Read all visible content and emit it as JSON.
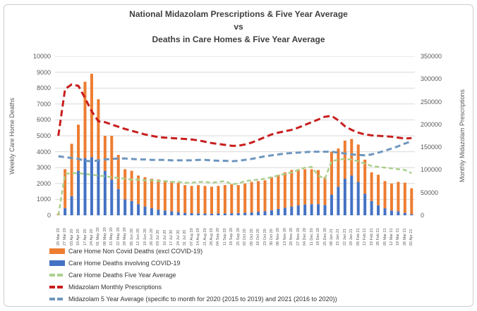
{
  "title": {
    "line1": "National Midazolam Prescriptions & Five Year Average",
    "line2": "vs",
    "line3": "Deaths in Care Homes & Five Year Average"
  },
  "chart_data": {
    "type": "bar",
    "subtype": "stacked-bar-with-dashed-lines",
    "grid": "horizontal-on",
    "legend_position": "bottom-left",
    "categories": [
      "20 Mar 20",
      "27 Mar 20",
      "03 Apr 20",
      "10 Apr 20",
      "17 Apr 20",
      "24 Apr 20",
      "01 May 20",
      "08 May 20",
      "15 May 20",
      "22 May 20",
      "29 May 20",
      "05 Jun 20",
      "12 Jun 20",
      "19 Jun 20",
      "26 Jun 20",
      "03 Jul 20",
      "10 Jul 20",
      "17 Jul 20",
      "24 Jul 20",
      "31 Jul 20",
      "07 Aug 20",
      "14 Aug 20",
      "21 Aug 20",
      "28 Aug 20",
      "04 Sep 20",
      "11 Sep 20",
      "18 Sep 20",
      "25 Sep 20",
      "02 Oct 20",
      "09 Oct 20",
      "16 Oct 20",
      "23 Oct 20",
      "30 Oct 20",
      "06 Nov 20",
      "13 Nov 20",
      "20 Nov 20",
      "27 Nov 20",
      "04 Dec 20",
      "11 Dec 20",
      "18 Dec 20",
      "25 Dec 20",
      "08 Jan 21",
      "15 Jan 21",
      "22 Jan 21",
      "29 Jan 21",
      "05 Feb 21",
      "12 Feb 21",
      "19 Feb 21",
      "26 Feb 21",
      "05 Mar 21",
      "12 Mar 21",
      "19 Mar 21",
      "26 Mar 21",
      "02 Apr 21"
    ],
    "left_axis": {
      "label": "Weekly Care Home Deaths",
      "min": 0,
      "max": 10000,
      "step": 1000
    },
    "right_axis": {
      "label": "Monthly Midazolam Prescriptions",
      "min": 0,
      "max": 350000,
      "step": 50000
    },
    "series": [
      {
        "name": "Care Home Non Covid Deaths (excl COVID-19)",
        "type": "bar",
        "stack_level": 1,
        "axis": "left",
        "color": "#ED7D31",
        "values": [
          100,
          2450,
          3300,
          2900,
          4800,
          5250,
          3800,
          2200,
          2750,
          2150,
          1900,
          1900,
          1800,
          1850,
          1850,
          1900,
          1900,
          1900,
          1850,
          1750,
          1720,
          1780,
          1740,
          1700,
          1740,
          1780,
          1820,
          1760,
          1840,
          1920,
          1930,
          1940,
          2080,
          2150,
          2220,
          2300,
          2280,
          2220,
          2200,
          2150,
          1750,
          2700,
          2400,
          2400,
          2300,
          2350,
          2150,
          1800,
          1920,
          1710,
          1700,
          1850,
          1900,
          1630
        ]
      },
      {
        "name": "Care Home Deaths involving COVID-19",
        "type": "bar",
        "stack_level": 0,
        "axis": "left",
        "color": "#4472C4",
        "values": [
          0,
          450,
          1200,
          2800,
          3600,
          3650,
          3500,
          2800,
          2250,
          1650,
          1000,
          900,
          700,
          550,
          450,
          350,
          300,
          250,
          200,
          150,
          130,
          120,
          110,
          100,
          110,
          120,
          130,
          140,
          160,
          180,
          220,
          260,
          320,
          400,
          480,
          550,
          620,
          680,
          700,
          700,
          650,
          1300,
          1800,
          2300,
          2500,
          2100,
          1350,
          900,
          630,
          440,
          300,
          250,
          150,
          70
        ]
      },
      {
        "name": "Care Home Deaths Five Year Average",
        "type": "line",
        "dashed": true,
        "axis": "left",
        "color": "#A9D08E",
        "stroke_width": 2.5,
        "dash": "6 4",
        "values": [
          0,
          2600,
          2650,
          2650,
          2600,
          2550,
          2500,
          2450,
          2400,
          2350,
          2300,
          2250,
          2250,
          2200,
          2200,
          2150,
          2150,
          2100,
          2100,
          2050,
          2050,
          2100,
          2100,
          2050,
          2100,
          2150,
          1950,
          2000,
          2150,
          2200,
          2250,
          2300,
          2400,
          2500,
          2600,
          2700,
          2850,
          3000,
          3050,
          2500,
          2300,
          3400,
          3500,
          3550,
          3500,
          3400,
          3250,
          3100,
          3050,
          3000,
          2950,
          2900,
          2850,
          2650
        ]
      },
      {
        "name": "Midazolam Monthly Prescriptions",
        "type": "line",
        "dashed": true,
        "axis": "right",
        "color": "#C81E1E",
        "stroke_width": 3,
        "dash": "9 5",
        "values": [
          175000,
          278000,
          288000,
          285000,
          258000,
          229000,
          207000,
          205000,
          200000,
          195000,
          190000,
          186000,
          182000,
          178000,
          175000,
          172000,
          171000,
          170000,
          169000,
          168000,
          167000,
          165000,
          162000,
          159000,
          157000,
          155000,
          153000,
          153000,
          156000,
          160000,
          166000,
          172000,
          178000,
          182000,
          185000,
          188000,
          193000,
          199000,
          205000,
          211000,
          217000,
          219000,
          209000,
          196000,
          188000,
          182000,
          178000,
          176000,
          175000,
          174000,
          173000,
          171000,
          169000,
          170000
        ]
      },
      {
        "name": "Midazolam 5 Year Average (specific to month for 2020 (2015 to 2019) and 2021 (2016 to 2020))",
        "type": "line",
        "dashed": true,
        "axis": "right",
        "color": "#6E96BE",
        "stroke_width": 3,
        "dash": "8 5",
        "values": [
          130000,
          128000,
          126000,
          124000,
          120000,
          119000,
          121000,
          123000,
          124000,
          125000,
          125000,
          124000,
          123000,
          123000,
          122000,
          122000,
          122000,
          121000,
          121000,
          121000,
          121000,
          122000,
          122000,
          121000,
          120000,
          120000,
          119000,
          120000,
          122000,
          124000,
          127000,
          130000,
          132000,
          134000,
          136000,
          137000,
          138000,
          139000,
          140000,
          140000,
          140000,
          140000,
          138000,
          136000,
          134000,
          133000,
          132000,
          134000,
          138000,
          142000,
          147000,
          152000,
          158000,
          163000
        ]
      }
    ]
  },
  "colors": {
    "grid": "#d9d9d9",
    "tick_text": "#595959",
    "title_text": "#3f3f3f",
    "legend_text": "#333333",
    "frame_border": "#cdcdcd"
  }
}
